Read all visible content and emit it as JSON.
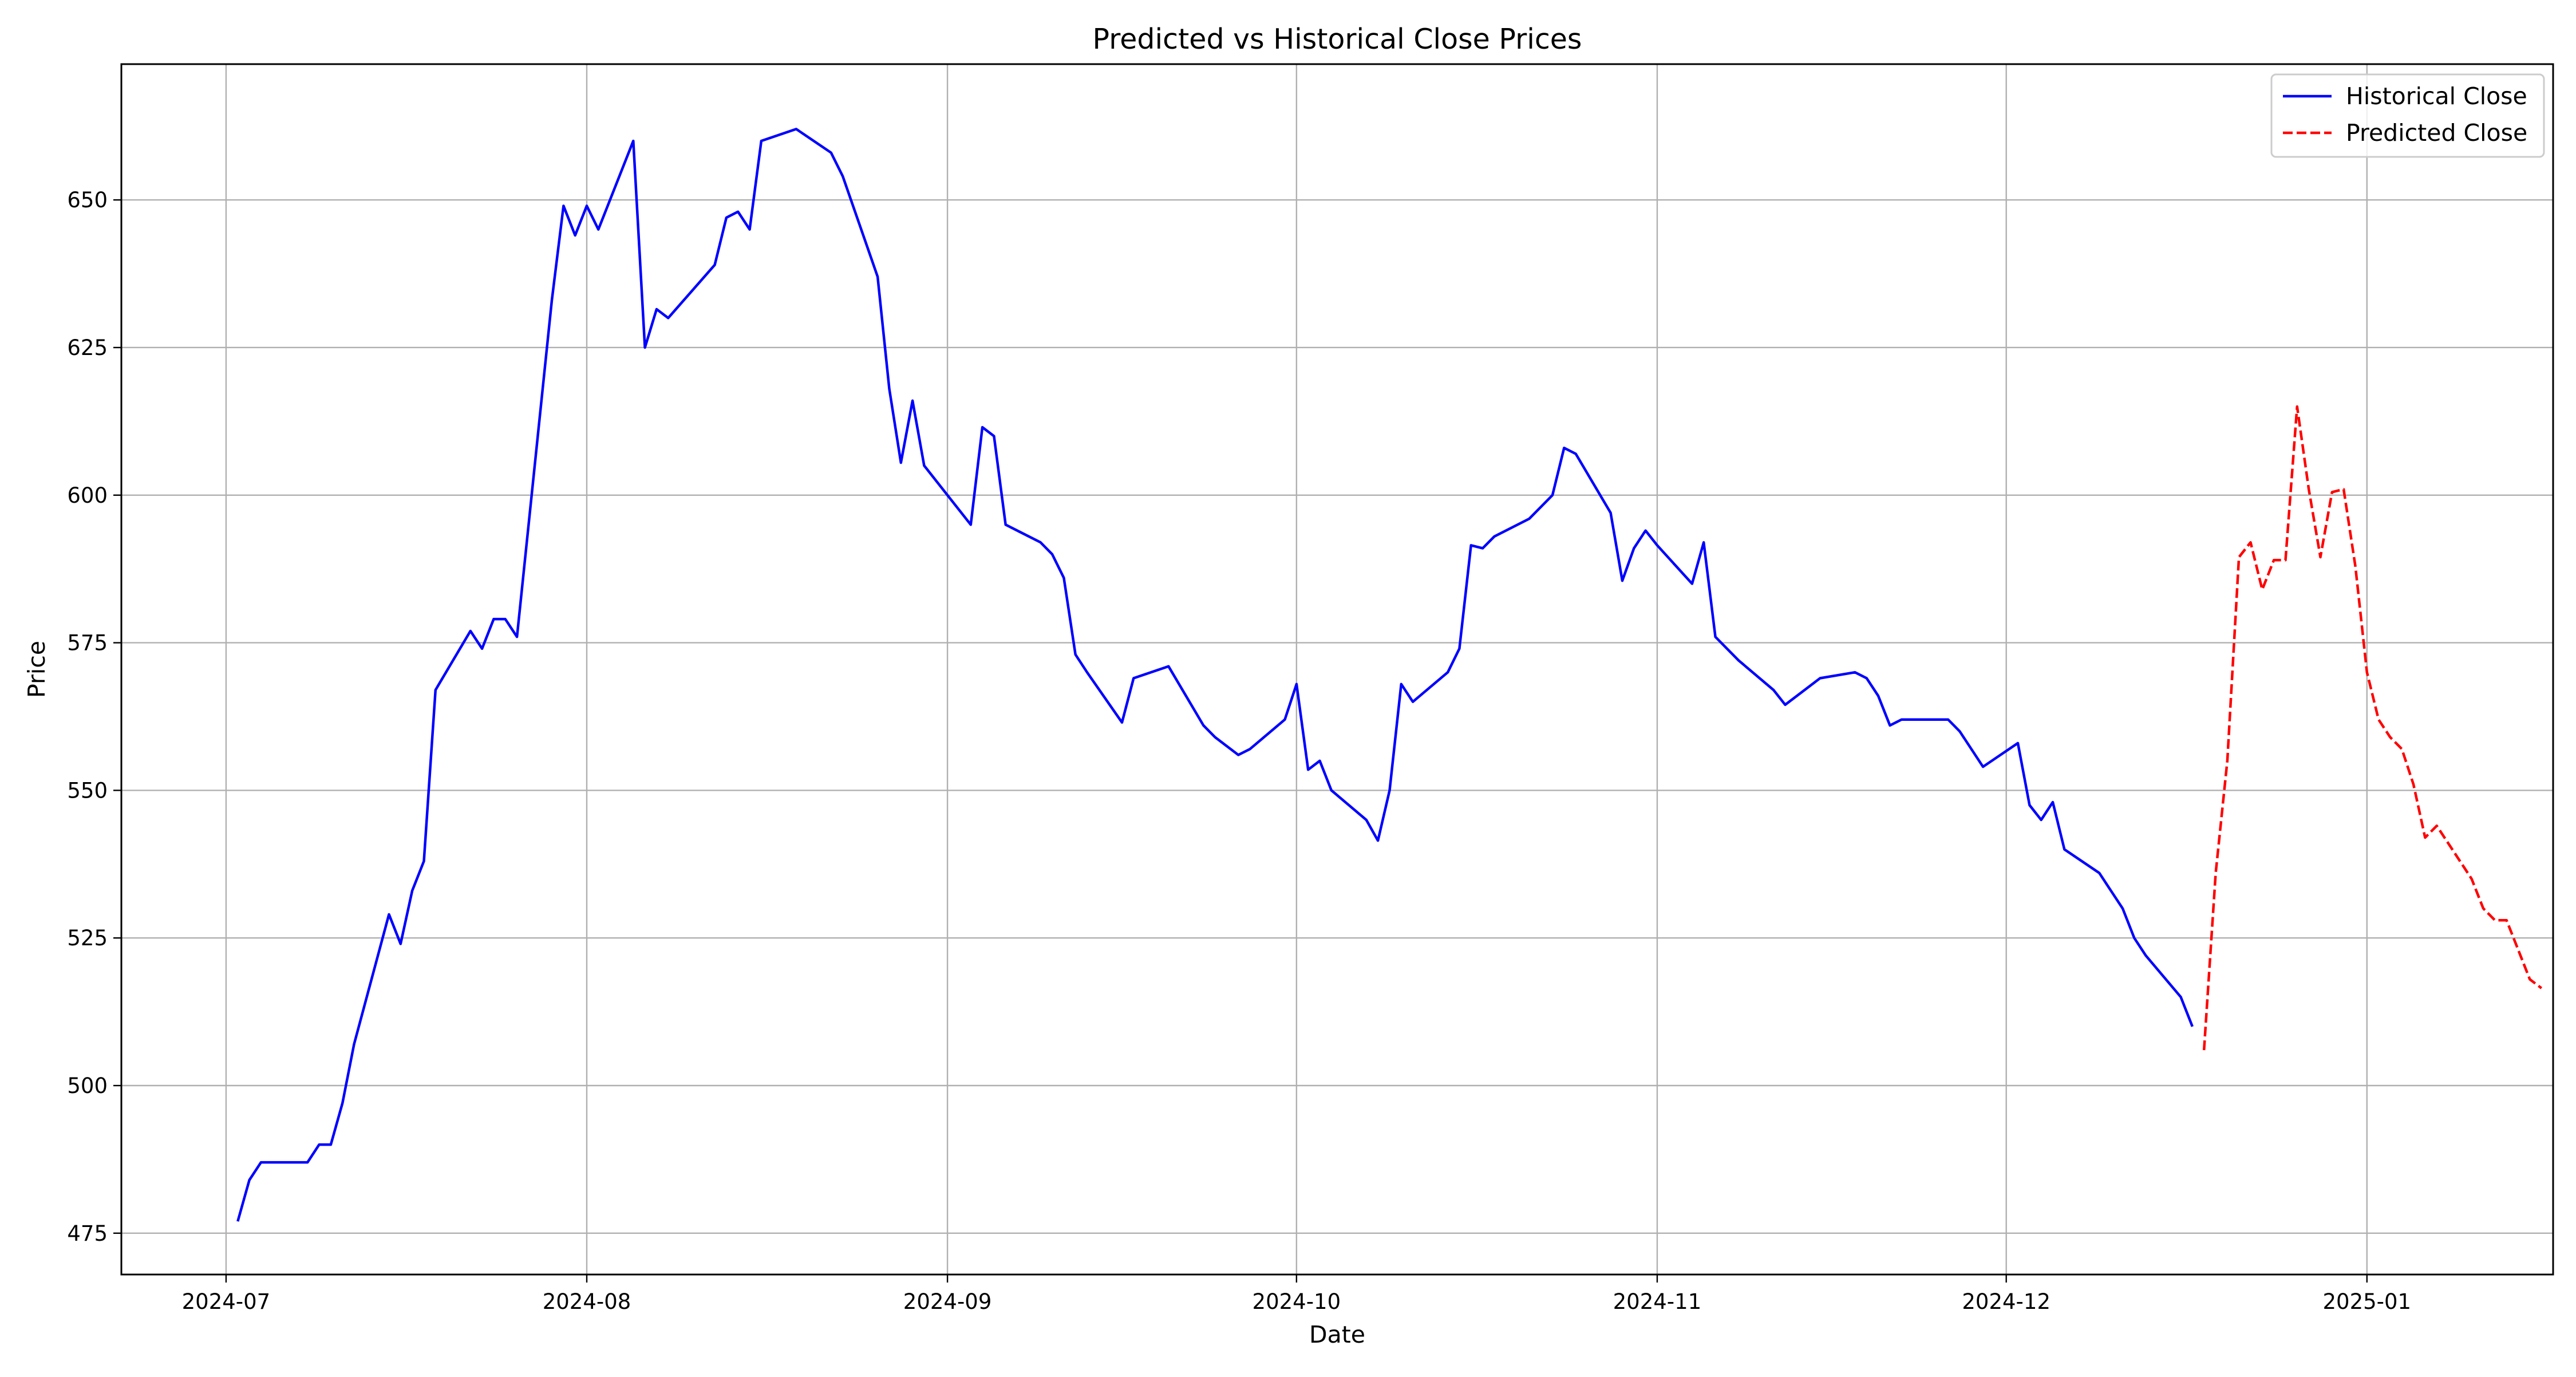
{
  "chart_data": {
    "type": "line",
    "title": "Predicted vs Historical Close Prices",
    "xlabel": "Date",
    "ylabel": "Price",
    "grid": true,
    "legend_position": "top-right",
    "xlim": [
      "2024-06-22",
      "2025-01-17"
    ],
    "ylim": [
      468,
      673
    ],
    "x_ticks": [
      "2024-07",
      "2024-08",
      "2024-09",
      "2024-10",
      "2024-11",
      "2024-12",
      "2025-01"
    ],
    "y_ticks": [
      475,
      500,
      525,
      550,
      575,
      600,
      625,
      650
    ],
    "series": [
      {
        "name": "Historical Close",
        "color": "#0000ff",
        "style": "solid",
        "points": [
          [
            "2024-07-02",
            477
          ],
          [
            "2024-07-03",
            484
          ],
          [
            "2024-07-04",
            487
          ],
          [
            "2024-07-05",
            487
          ],
          [
            "2024-07-08",
            487
          ],
          [
            "2024-07-09",
            490
          ],
          [
            "2024-07-10",
            490
          ],
          [
            "2024-07-11",
            497
          ],
          [
            "2024-07-12",
            507
          ],
          [
            "2024-07-15",
            529
          ],
          [
            "2024-07-16",
            524
          ],
          [
            "2024-07-17",
            533
          ],
          [
            "2024-07-18",
            538
          ],
          [
            "2024-07-19",
            567
          ],
          [
            "2024-07-22",
            577
          ],
          [
            "2024-07-23",
            574
          ],
          [
            "2024-07-24",
            579
          ],
          [
            "2024-07-25",
            579
          ],
          [
            "2024-07-26",
            576
          ],
          [
            "2024-07-29",
            633
          ],
          [
            "2024-07-30",
            649
          ],
          [
            "2024-07-31",
            644
          ],
          [
            "2024-08-01",
            649
          ],
          [
            "2024-08-02",
            645
          ],
          [
            "2024-08-05",
            660
          ],
          [
            "2024-08-06",
            625
          ],
          [
            "2024-08-07",
            631.5
          ],
          [
            "2024-08-08",
            630
          ],
          [
            "2024-08-12",
            639
          ],
          [
            "2024-08-13",
            647
          ],
          [
            "2024-08-14",
            648
          ],
          [
            "2024-08-15",
            645
          ],
          [
            "2024-08-16",
            660
          ],
          [
            "2024-08-19",
            662
          ],
          [
            "2024-08-22",
            658
          ],
          [
            "2024-08-23",
            654
          ],
          [
            "2024-08-26",
            637
          ],
          [
            "2024-08-27",
            618
          ],
          [
            "2024-08-28",
            605.5
          ],
          [
            "2024-08-29",
            616
          ],
          [
            "2024-08-30",
            605
          ],
          [
            "2024-09-03",
            595
          ],
          [
            "2024-09-04",
            611.5
          ],
          [
            "2024-09-05",
            610
          ],
          [
            "2024-09-06",
            595
          ],
          [
            "2024-09-09",
            592
          ],
          [
            "2024-09-10",
            590
          ],
          [
            "2024-09-11",
            586
          ],
          [
            "2024-09-12",
            573
          ],
          [
            "2024-09-13",
            570
          ],
          [
            "2024-09-16",
            561.5
          ],
          [
            "2024-09-17",
            569
          ],
          [
            "2024-09-20",
            571
          ],
          [
            "2024-09-23",
            561
          ],
          [
            "2024-09-24",
            559
          ],
          [
            "2024-09-26",
            556
          ],
          [
            "2024-09-27",
            557
          ],
          [
            "2024-09-30",
            562
          ],
          [
            "2024-10-01",
            568
          ],
          [
            "2024-10-02",
            553.5
          ],
          [
            "2024-10-03",
            555
          ],
          [
            "2024-10-04",
            550
          ],
          [
            "2024-10-07",
            545
          ],
          [
            "2024-10-08",
            541.5
          ],
          [
            "2024-10-09",
            550
          ],
          [
            "2024-10-10",
            568
          ],
          [
            "2024-10-11",
            565
          ],
          [
            "2024-10-14",
            570
          ],
          [
            "2024-10-15",
            574
          ],
          [
            "2024-10-16",
            591.5
          ],
          [
            "2024-10-17",
            591
          ],
          [
            "2024-10-18",
            593
          ],
          [
            "2024-10-21",
            596
          ],
          [
            "2024-10-22",
            598
          ],
          [
            "2024-10-23",
            600
          ],
          [
            "2024-10-24",
            608
          ],
          [
            "2024-10-25",
            607
          ],
          [
            "2024-10-28",
            597
          ],
          [
            "2024-10-29",
            585.5
          ],
          [
            "2024-10-30",
            591
          ],
          [
            "2024-10-31",
            594
          ],
          [
            "2024-11-01",
            591.5
          ],
          [
            "2024-11-04",
            585
          ],
          [
            "2024-11-05",
            592
          ],
          [
            "2024-11-06",
            576
          ],
          [
            "2024-11-07",
            574
          ],
          [
            "2024-11-08",
            572
          ],
          [
            "2024-11-11",
            567
          ],
          [
            "2024-11-12",
            564.5
          ],
          [
            "2024-11-13",
            566
          ],
          [
            "2024-11-15",
            569
          ],
          [
            "2024-11-18",
            570
          ],
          [
            "2024-11-19",
            569
          ],
          [
            "2024-11-20",
            566
          ],
          [
            "2024-11-21",
            561
          ],
          [
            "2024-11-22",
            562
          ],
          [
            "2024-11-25",
            562
          ],
          [
            "2024-11-26",
            562
          ],
          [
            "2024-11-27",
            560
          ],
          [
            "2024-11-28",
            557
          ],
          [
            "2024-11-29",
            554
          ],
          [
            "2024-12-02",
            558
          ],
          [
            "2024-12-03",
            547.5
          ],
          [
            "2024-12-04",
            545
          ],
          [
            "2024-12-05",
            548
          ],
          [
            "2024-12-06",
            540
          ],
          [
            "2024-12-09",
            536
          ],
          [
            "2024-12-10",
            533
          ],
          [
            "2024-12-11",
            530
          ],
          [
            "2024-12-12",
            525
          ],
          [
            "2024-12-13",
            522
          ],
          [
            "2024-12-16",
            515
          ],
          [
            "2024-12-17",
            510
          ]
        ]
      },
      {
        "name": "Predicted Close",
        "color": "#ff0000",
        "style": "dashed",
        "points": [
          [
            "2024-12-18",
            506
          ],
          [
            "2024-12-19",
            536
          ],
          [
            "2024-12-20",
            555
          ],
          [
            "2024-12-21",
            589.5
          ],
          [
            "2024-12-22",
            592
          ],
          [
            "2024-12-23",
            584
          ],
          [
            "2024-12-24",
            589
          ],
          [
            "2024-12-25",
            589
          ],
          [
            "2024-12-26",
            615
          ],
          [
            "2024-12-27",
            601
          ],
          [
            "2024-12-28",
            589.5
          ],
          [
            "2024-12-29",
            600.5
          ],
          [
            "2024-12-30",
            601
          ],
          [
            "2024-12-31",
            588
          ],
          [
            "2025-01-01",
            570
          ],
          [
            "2025-01-02",
            562
          ],
          [
            "2025-01-03",
            559
          ],
          [
            "2025-01-04",
            557
          ],
          [
            "2025-01-05",
            551
          ],
          [
            "2025-01-06",
            542
          ],
          [
            "2025-01-07",
            544
          ],
          [
            "2025-01-08",
            541
          ],
          [
            "2025-01-09",
            538
          ],
          [
            "2025-01-10",
            535
          ],
          [
            "2025-01-11",
            530
          ],
          [
            "2025-01-12",
            528
          ],
          [
            "2025-01-13",
            528
          ],
          [
            "2025-01-14",
            523
          ],
          [
            "2025-01-15",
            518
          ],
          [
            "2025-01-16",
            516.5
          ]
        ]
      }
    ]
  }
}
